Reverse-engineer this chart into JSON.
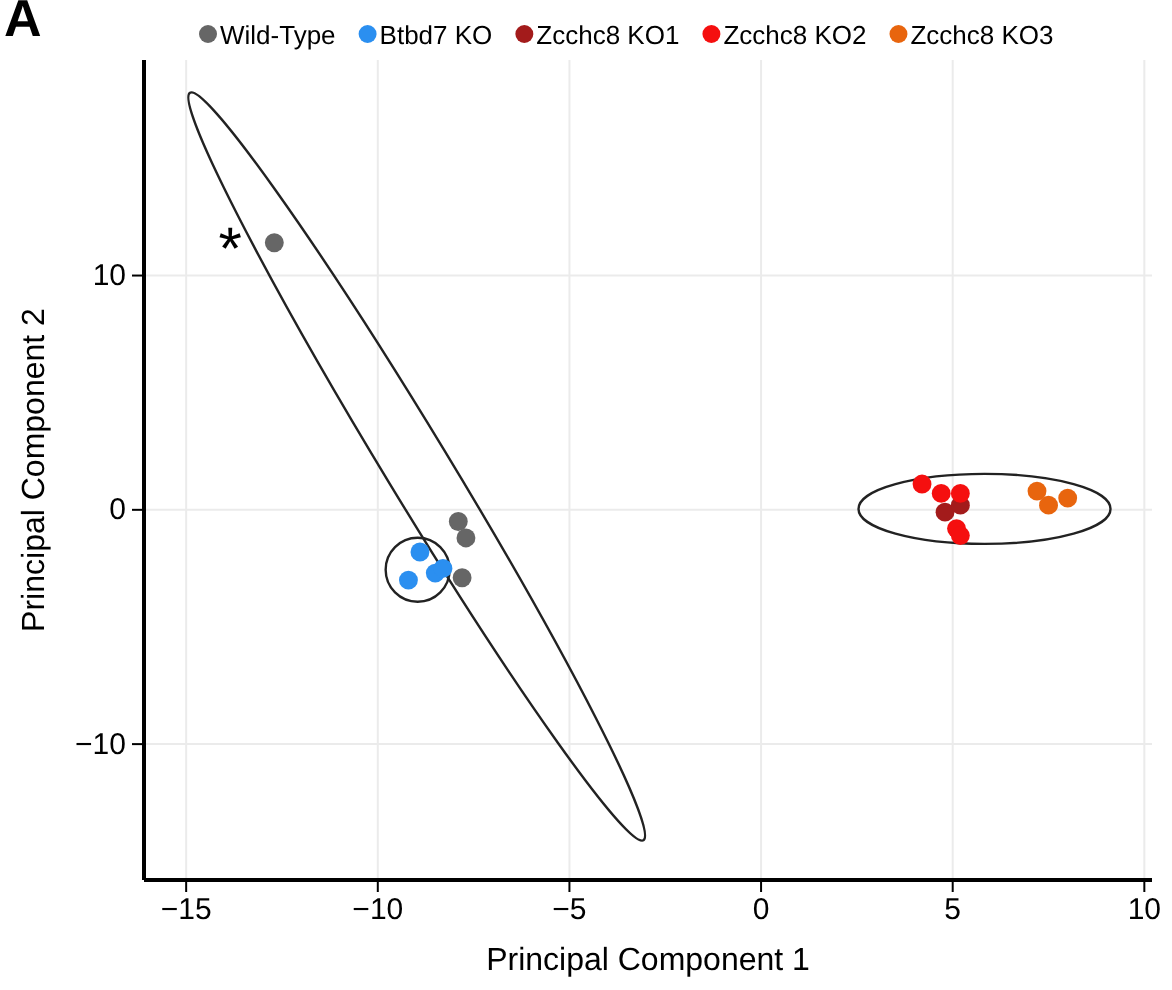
{
  "chart_data": {
    "type": "scatter",
    "xlabel": "Principal Component 1",
    "ylabel": "Principal Component 2",
    "xlim": [
      -16.1,
      10.2
    ],
    "ylim": [
      -15.8,
      19.2
    ],
    "xticks": [
      -15,
      -10,
      -5,
      0,
      5,
      10
    ],
    "yticks": [
      -10,
      0,
      10
    ],
    "grid": true,
    "legend": "top",
    "marker": "circle",
    "annotations": [
      "A",
      "*"
    ],
    "series": [
      {
        "name": "Wild-Type",
        "color": "#666666",
        "x": [
          -12.7,
          -7.9,
          -7.7,
          -7.8
        ],
        "values": [
          11.4,
          -0.5,
          -1.2,
          -2.9
        ]
      },
      {
        "name": "Btbd7 KO",
        "color": "#2b8ff0",
        "x": [
          -8.9,
          -9.2,
          -8.5,
          -8.3
        ],
        "values": [
          -1.8,
          -3.0,
          -2.7,
          -2.5
        ]
      },
      {
        "name": "Zcchc8 KO1",
        "color": "#a31b1b",
        "x": [
          4.8,
          5.2
        ],
        "values": [
          -0.1,
          0.2
        ]
      },
      {
        "name": "Zcchc8 KO2",
        "color": "#f50f0f",
        "x": [
          4.2,
          4.7,
          5.2,
          5.1,
          5.2
        ],
        "values": [
          1.1,
          0.7,
          0.7,
          -0.8,
          -1.1
        ]
      },
      {
        "name": "Zcchc8 KO3",
        "color": "#e8650e",
        "x": [
          7.2,
          7.5,
          8.0
        ],
        "values": [
          0.8,
          0.2,
          0.5
        ]
      }
    ]
  }
}
